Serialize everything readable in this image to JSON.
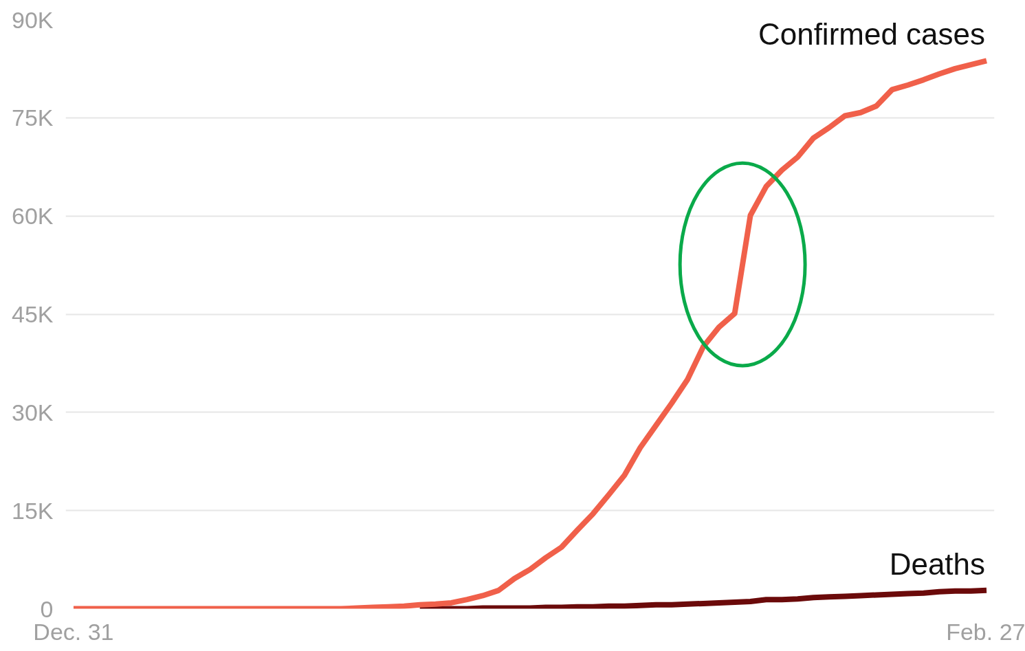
{
  "chart_data": {
    "type": "line",
    "categories": [
      "Dec. 31",
      null,
      null,
      null,
      null,
      null,
      null,
      null,
      null,
      null,
      null,
      null,
      null,
      null,
      null,
      null,
      null,
      null,
      null,
      null,
      null,
      null,
      null,
      null,
      null,
      null,
      null,
      null,
      null,
      null,
      null,
      null,
      null,
      null,
      null,
      null,
      null,
      null,
      null,
      null,
      null,
      null,
      null,
      null,
      null,
      null,
      null,
      null,
      null,
      null,
      null,
      null,
      null,
      null,
      null,
      null,
      null,
      null,
      "Feb. 27"
    ],
    "series": [
      {
        "name": "Confirmed cases",
        "color": "#f0604a",
        "values": [
          0,
          0,
          0,
          0,
          0,
          0,
          0,
          0,
          0,
          0,
          0,
          0,
          0,
          0,
          0,
          0,
          0,
          0,
          100,
          200,
          300,
          400,
          600,
          700,
          900,
          1400,
          2000,
          2800,
          4600,
          6000,
          7800,
          9400,
          12000,
          14500,
          17400,
          20400,
          24600,
          28000,
          31400,
          35000,
          40000,
          43000,
          45100,
          60100,
          64500,
          67000,
          69000,
          71900,
          73500,
          75300,
          75800,
          76800,
          79300,
          80000,
          80800,
          81700,
          82500,
          83100,
          83700
        ]
      },
      {
        "name": "Deaths",
        "color": "#6b0a0a",
        "values": [
          null,
          null,
          null,
          null,
          null,
          null,
          null,
          null,
          null,
          null,
          null,
          null,
          null,
          null,
          null,
          null,
          null,
          null,
          null,
          null,
          null,
          null,
          0,
          0,
          0,
          0,
          100,
          100,
          100,
          100,
          200,
          200,
          300,
          300,
          400,
          400,
          500,
          600,
          600,
          700,
          800,
          900,
          1000,
          1100,
          1400,
          1400,
          1500,
          1700,
          1800,
          1900,
          2000,
          2100,
          2200,
          2300,
          2400,
          2600,
          2700,
          2700,
          2800
        ]
      }
    ],
    "ylim": [
      0,
      90000
    ],
    "yticks": [
      {
        "value": 0,
        "label": "0"
      },
      {
        "value": 15000,
        "label": "15K"
      },
      {
        "value": 30000,
        "label": "30K"
      },
      {
        "value": 45000,
        "label": "45K"
      },
      {
        "value": 60000,
        "label": "60K"
      },
      {
        "value": 75000,
        "label": "75K"
      },
      {
        "value": 90000,
        "label": "90K"
      }
    ],
    "grid": "y",
    "marker": "none",
    "line_style": "solid"
  }
}
